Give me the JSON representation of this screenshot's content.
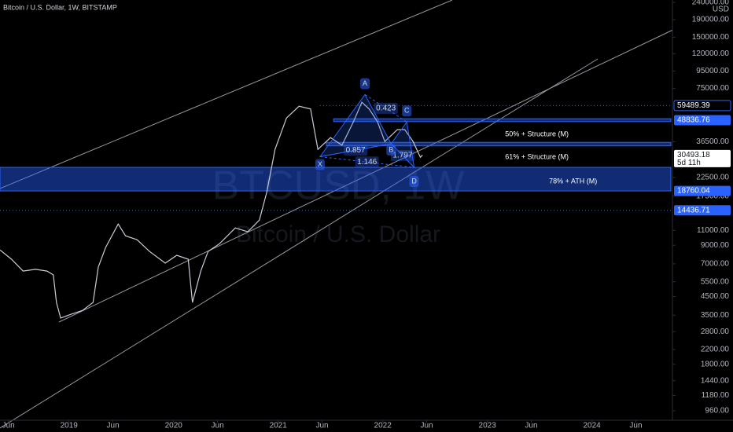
{
  "chart_data": {
    "type": "line",
    "title": "Bitcoin / U.S. Dollar, 1W, BITSTAMP",
    "watermark": "BTCUSD, 1W",
    "watermark_subtitle": "Bitcoin / U.S. Dollar",
    "currency": "USD",
    "log_scale": true,
    "xlim": [
      2018.34,
      2024.77
    ],
    "ylim": [
      845,
      248000
    ],
    "xticks": [
      {
        "value": 2018.42,
        "label": "Jun"
      },
      {
        "value": 2019,
        "label": "2019"
      },
      {
        "value": 2019.42,
        "label": "Jun"
      },
      {
        "value": 2020,
        "label": "2020"
      },
      {
        "value": 2020.42,
        "label": "Jun"
      },
      {
        "value": 2021,
        "label": "2021"
      },
      {
        "value": 2021.42,
        "label": "Jun"
      },
      {
        "value": 2022,
        "label": "2022"
      },
      {
        "value": 2022.42,
        "label": "Jun"
      },
      {
        "value": 2023,
        "label": "2023"
      },
      {
        "value": 2023.42,
        "label": "Jun"
      },
      {
        "value": 2024,
        "label": "2024"
      },
      {
        "value": 2024.42,
        "label": "Jun"
      }
    ],
    "yticks": [
      {
        "value": 240000,
        "label": "240000.00"
      },
      {
        "value": 190000,
        "label": "190000.00"
      },
      {
        "value": 150000,
        "label": "150000.00"
      },
      {
        "value": 120000,
        "label": "120000.00"
      },
      {
        "value": 95000,
        "label": "95000.00"
      },
      {
        "value": 75000,
        "label": "75000.00"
      },
      {
        "value": 36500,
        "label": "36500.00"
      },
      {
        "value": 22500,
        "label": "22500.00"
      },
      {
        "value": 17500,
        "label": "17500.00"
      },
      {
        "value": 11000,
        "label": "11000.00"
      },
      {
        "value": 9000,
        "label": "9000.00"
      },
      {
        "value": 7000,
        "label": "7000.00"
      },
      {
        "value": 5500,
        "label": "5500.00"
      },
      {
        "value": 4500,
        "label": "4500.00"
      },
      {
        "value": 3500,
        "label": "3500.00"
      },
      {
        "value": 2800,
        "label": "2800.00"
      },
      {
        "value": 2200,
        "label": "2200.00"
      },
      {
        "value": 1800,
        "label": "1800.00"
      },
      {
        "value": 1440,
        "label": "1440.00"
      },
      {
        "value": 1180,
        "label": "1180.00"
      },
      {
        "value": 960,
        "label": "960.00"
      }
    ],
    "series": [
      {
        "color": "#c8ccd6",
        "x": [
          2018.34,
          2018.45,
          2018.56,
          2018.68,
          2018.79,
          2018.85,
          2018.88,
          2018.92,
          2019.02,
          2019.13,
          2019.23,
          2019.28,
          2019.35,
          2019.47,
          2019.54,
          2019.65,
          2019.77,
          2019.92,
          2020.03,
          2020.14,
          2020.18,
          2020.26,
          2020.33,
          2020.44,
          2020.59,
          2020.71,
          2020.82,
          2020.89,
          2020.97,
          2021.08,
          2021.2,
          2021.31,
          2021.38,
          2021.5,
          2021.61,
          2021.72,
          2021.8,
          2021.87,
          2021.95,
          2022.02,
          2022.14,
          2022.21,
          2022.29,
          2022.36,
          2022.38
        ],
        "values": [
          8450,
          7450,
          6350,
          6500,
          6350,
          6030,
          4150,
          3360,
          3540,
          3730,
          4150,
          6700,
          8730,
          12000,
          10230,
          9700,
          8280,
          7070,
          7850,
          7450,
          4150,
          6350,
          8280,
          9200,
          11380,
          10800,
          12650,
          18370,
          32900,
          50300,
          59000,
          56800,
          32900,
          38600,
          34800,
          47800,
          62300,
          56800,
          47800,
          36600,
          43000,
          43000,
          36600,
          29600,
          30493.18
        ]
      }
    ],
    "price_labels": [
      59489.39,
      48836.76,
      30493.18,
      18760.04,
      14436.71
    ],
    "countdown": "5d 11h",
    "bands": [
      {
        "top": 49800,
        "bottom": 47900,
        "x_start": 2021.53
      },
      {
        "top": 36200,
        "bottom": 34500,
        "x_start": 2021.46
      },
      {
        "top": 25800,
        "bottom": 18760.04,
        "x_start": 2018.34
      }
    ],
    "annotations": [
      {
        "text": "50% + Structure (M)",
        "x": 2023.17,
        "y": 40300
      },
      {
        "text": "61% + Structure (M)",
        "x": 2023.17,
        "y": 29600
      },
      {
        "text": "78% + ATH (M)",
        "x": 2023.59,
        "y": 21300
      }
    ],
    "pattern_points": [
      {
        "label": "X",
        "x": 2021.4,
        "y": 29800
      },
      {
        "label": "A",
        "x": 2021.83,
        "y": 69000
      },
      {
        "label": "B",
        "x": 2022.08,
        "y": 35500
      },
      {
        "label": "C",
        "x": 2022.23,
        "y": 47700
      },
      {
        "label": "D",
        "x": 2022.3,
        "y": 25800
      }
    ],
    "ratios": [
      0.423,
      0.857,
      1.146,
      1.797
    ]
  }
}
